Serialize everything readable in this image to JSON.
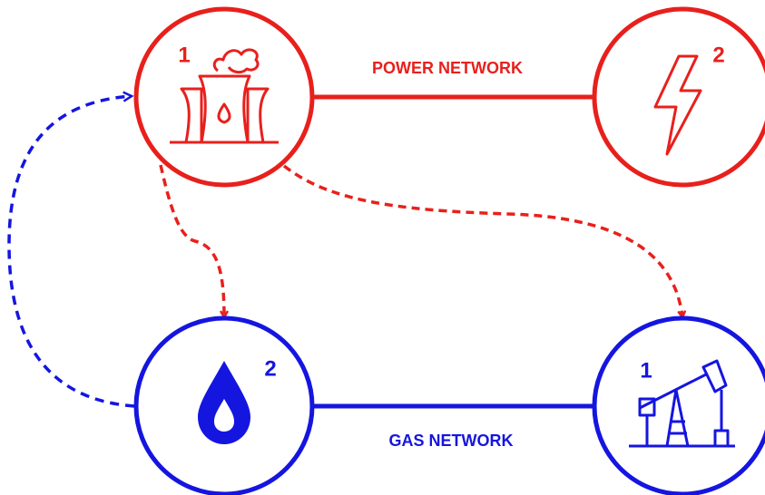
{
  "nodes": [
    {
      "label": "1"
    },
    {
      "label": "2"
    },
    {
      "label": "2"
    },
    {
      "label": "1"
    }
  ],
  "edges": [
    {
      "label": "POWER NETWORK"
    },
    {
      "label": "GAS NETWORK"
    }
  ]
}
